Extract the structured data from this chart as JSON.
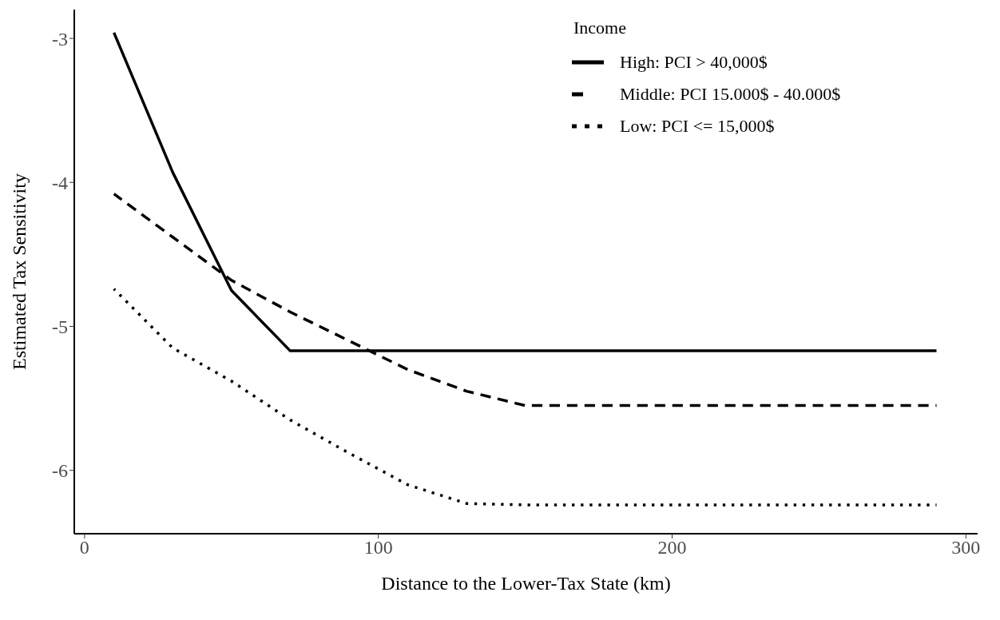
{
  "chart_data": {
    "type": "line",
    "xlabel": "Distance to the Lower-Tax State (km)",
    "ylabel": "Estimated Tax Sensitivity",
    "legend_title": "Income",
    "legend": "top right",
    "grid": false,
    "x": [
      10,
      30,
      50,
      70,
      90,
      110,
      130,
      150,
      170,
      190,
      210,
      230,
      250,
      270,
      290
    ],
    "xlim": [
      -3.5,
      304
    ],
    "xticks": [
      0,
      100,
      200,
      300
    ],
    "ylim": [
      -6.44,
      -2.8
    ],
    "yticks": [
      -3,
      -4,
      -5,
      -6
    ],
    "series": [
      {
        "name": "High: PCI > 40,000$",
        "color": "#000000",
        "line_style": "solid",
        "values": [
          -2.96,
          -3.93,
          -4.75,
          -5.17,
          -5.17,
          -5.17,
          -5.17,
          -5.17,
          -5.17,
          -5.17,
          -5.17,
          -5.17,
          -5.17,
          -5.17,
          -5.17
        ]
      },
      {
        "name": "Middle: PCI 15.000$ - 40.000$",
        "color": "#000000",
        "line_style": "dashed",
        "values": [
          -4.08,
          -4.38,
          -4.68,
          -4.9,
          -5.1,
          -5.3,
          -5.45,
          -5.55,
          -5.55,
          -5.55,
          -5.55,
          -5.55,
          -5.55,
          -5.55,
          -5.55
        ]
      },
      {
        "name": "Low: PCI <= 15,000$",
        "color": "#000000",
        "line_style": "dotted",
        "values": [
          -4.74,
          -5.15,
          -5.38,
          -5.65,
          -5.88,
          -6.1,
          -6.23,
          -6.24,
          -6.24,
          -6.24,
          -6.24,
          -6.24,
          -6.24,
          -6.24,
          -6.24
        ]
      }
    ]
  }
}
